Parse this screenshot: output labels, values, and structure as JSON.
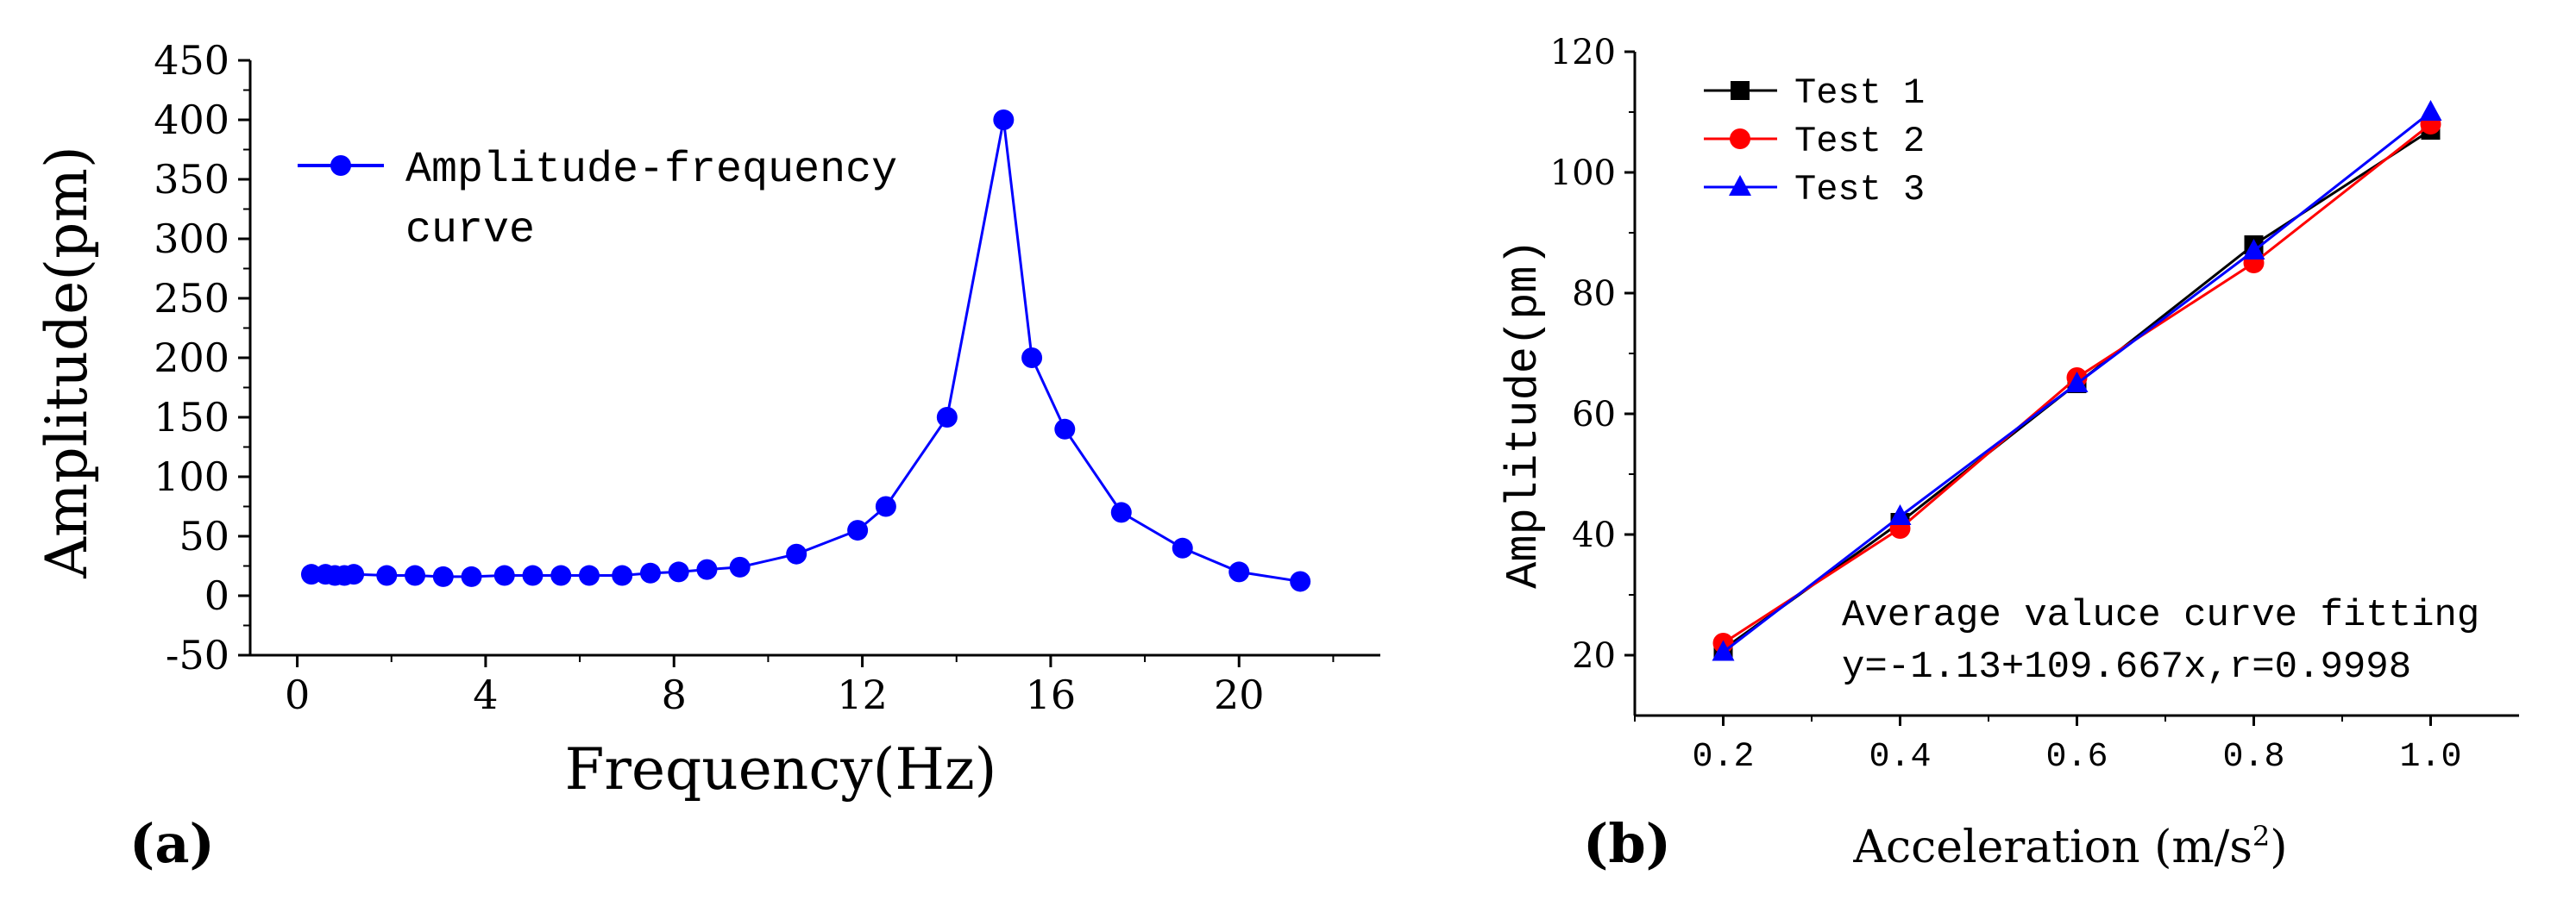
{
  "chart_data": [
    {
      "panel_label": "(a)",
      "type": "line",
      "title": "",
      "xlabel": "Frequency(Hz)",
      "ylabel": "Amplitude(pm)",
      "xlim": [
        -1,
        23
      ],
      "ylim": [
        -50,
        450
      ],
      "xticks": [
        "0",
        "4",
        "8",
        "12",
        "16",
        "20"
      ],
      "yticks": [
        "-50",
        "0",
        "50",
        "100",
        "150",
        "200",
        "250",
        "300",
        "350",
        "400",
        "450"
      ],
      "legend": {
        "position": "top-left",
        "line1": "Amplitude-frequency",
        "line2": "curve"
      },
      "series": [
        {
          "name": "Amplitude-frequency curve",
          "color": "#0000ff",
          "marker": "circle",
          "x": [
            0.3,
            0.6,
            0.8,
            1.0,
            1.2,
            1.9,
            2.5,
            3.1,
            3.7,
            4.4,
            5.0,
            5.6,
            6.2,
            6.9,
            7.5,
            8.1,
            8.7,
            9.4,
            10.6,
            11.9,
            12.5,
            13.8,
            15.0,
            15.6,
            16.3,
            17.5,
            18.8,
            20.0,
            21.3
          ],
          "y": [
            18,
            18,
            17,
            17,
            18,
            17,
            17,
            16,
            16,
            17,
            17,
            17,
            17,
            17,
            19,
            20,
            22,
            24,
            35,
            55,
            75,
            150,
            400,
            200,
            140,
            70,
            40,
            20,
            12
          ]
        }
      ]
    },
    {
      "panel_label": "(b)",
      "type": "line",
      "title": "",
      "xlabel": "Acceleration (m/s",
      "xlabel_sup": "2",
      "xlabel_end": ")",
      "ylabel": "Amplitude(pm)",
      "xlim": [
        0.1,
        1.1
      ],
      "ylim": [
        10,
        120
      ],
      "xticks": [
        "0.2",
        "0.4",
        "0.6",
        "0.8",
        "1.0"
      ],
      "yticks": [
        "20",
        "40",
        "60",
        "80",
        "100",
        "120"
      ],
      "legend_position": "top-left",
      "series": [
        {
          "name": "Test 1",
          "color": "#000000",
          "marker": "square",
          "x": [
            0.2,
            0.4,
            0.6,
            0.8,
            1.0
          ],
          "y": [
            21,
            42,
            65,
            88,
            107
          ]
        },
        {
          "name": "Test 2",
          "color": "#ff0000",
          "marker": "circle",
          "x": [
            0.2,
            0.4,
            0.6,
            0.8,
            1.0
          ],
          "y": [
            22,
            41,
            66,
            85,
            108
          ]
        },
        {
          "name": "Test 3",
          "color": "#0000ff",
          "marker": "triangle",
          "x": [
            0.2,
            0.4,
            0.6,
            0.8,
            1.0
          ],
          "y": [
            20.5,
            43,
            65,
            87,
            110
          ]
        }
      ],
      "annotation": {
        "line1": "Average valuce curve fitting",
        "line2": "y=-1.13+109.667x,r=0.9998"
      }
    }
  ]
}
